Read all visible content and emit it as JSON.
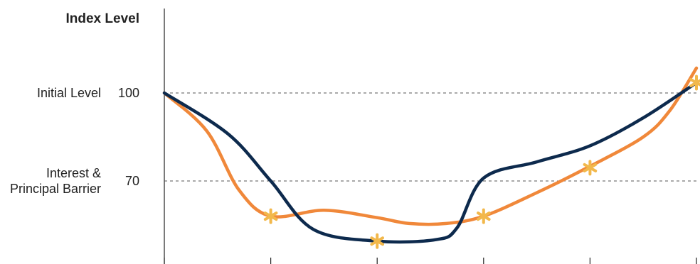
{
  "chart_data": {
    "type": "line",
    "ylabel": "Index Level",
    "xlabel": "",
    "y_ticks": [
      "100",
      "70"
    ],
    "ylim": [
      40,
      110
    ],
    "x": [
      0,
      1,
      2,
      3,
      4,
      5
    ],
    "reference_lines": [
      {
        "name": "Initial Level",
        "value": 100,
        "label_lines": [
          "Initial Level"
        ]
      },
      {
        "name": "Interest & Principal Barrier",
        "value": 70,
        "label_lines": [
          "Interest &",
          "Principal Barrier"
        ]
      }
    ],
    "series": [
      {
        "color": "#0d2a4d",
        "x": [
          0,
          0.6,
          1,
          1.4,
          2,
          2.55,
          2.75,
          3,
          3.5,
          4,
          4.5,
          5
        ],
        "values": [
          100,
          86,
          70,
          53.5,
          49.5,
          50,
          54,
          71,
          76.5,
          82,
          91.5,
          103.5
        ]
      },
      {
        "color": "#f0883a",
        "x": [
          0,
          0.4,
          0.7,
          1,
          1.5,
          2,
          2.3,
          2.65,
          3,
          3.5,
          4,
          4.5,
          4.75,
          5
        ],
        "values": [
          100,
          87,
          67,
          58,
          60,
          57.5,
          55.5,
          55.5,
          58,
          66,
          75,
          85,
          94,
          108.5
        ]
      }
    ],
    "markers": {
      "color": "#f2b84b",
      "points": [
        {
          "x": 1,
          "y": 58
        },
        {
          "x": 2,
          "y": 49.5
        },
        {
          "x": 3,
          "y": 58
        },
        {
          "x": 4,
          "y": 74.5
        },
        {
          "x": 5,
          "y": 103.5
        }
      ]
    },
    "axis_color": "#222222",
    "grid": false
  }
}
